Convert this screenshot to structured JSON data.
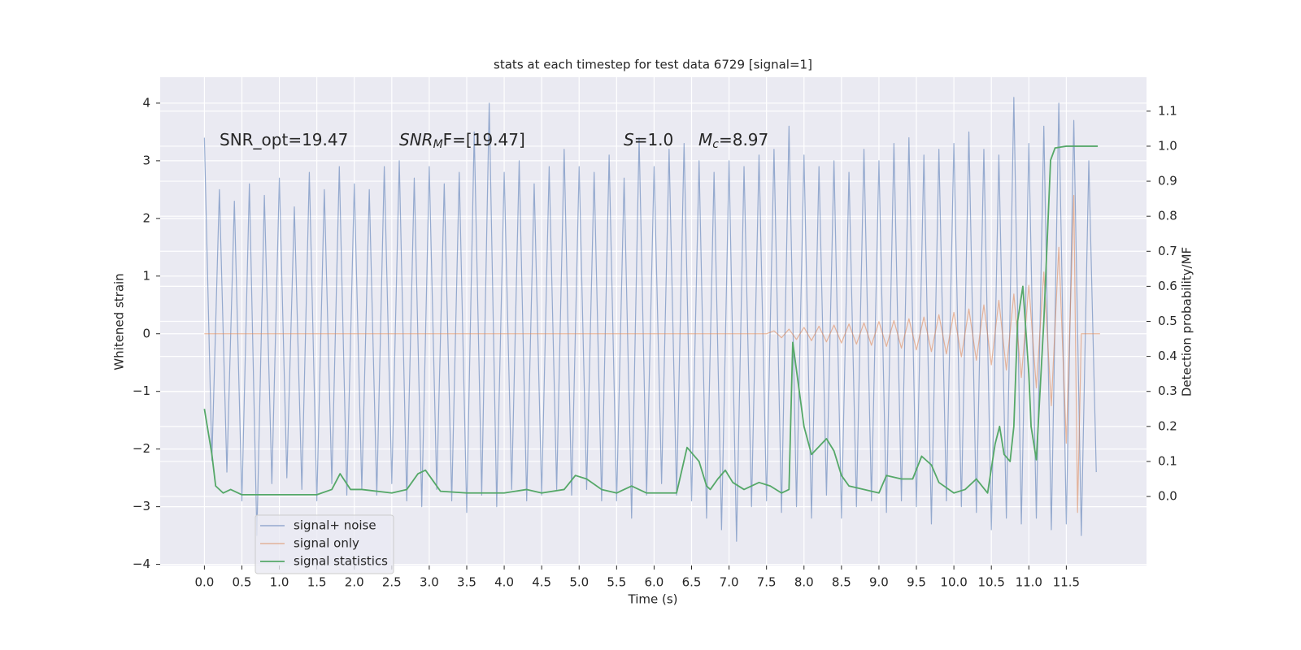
{
  "chart_data": {
    "type": "line",
    "title": "stats at each timestep for test data 6729 [signal=1]",
    "xlabel": "Time (s)",
    "ylabel": "Whitened strain",
    "y2label": "Detection probability/MF",
    "xlim": [
      -0.59,
      12.57
    ],
    "ylim": [
      -4.02,
      4.45
    ],
    "y2lim": [
      -0.197,
      1.197
    ],
    "grid": true,
    "legend": "lower left",
    "xticks": [
      {
        "value": 0,
        "label": "0.0"
      },
      {
        "value": 0.5,
        "label": "0.5"
      },
      {
        "value": 1,
        "label": "1.0"
      },
      {
        "value": 1.5,
        "label": "1.5"
      },
      {
        "value": 2,
        "label": "2.0"
      },
      {
        "value": 2.5,
        "label": "2.5"
      },
      {
        "value": 3,
        "label": "3.0"
      },
      {
        "value": 3.5,
        "label": "3.5"
      },
      {
        "value": 4,
        "label": "4.0"
      },
      {
        "value": 4.5,
        "label": "4.5"
      },
      {
        "value": 5,
        "label": "5.0"
      },
      {
        "value": 5.5,
        "label": "5.5"
      },
      {
        "value": 6,
        "label": "6.0"
      },
      {
        "value": 6.5,
        "label": "6.5"
      },
      {
        "value": 7,
        "label": "7.0"
      },
      {
        "value": 7.5,
        "label": "7.5"
      },
      {
        "value": 8,
        "label": "8.0"
      },
      {
        "value": 8.5,
        "label": "8.5"
      },
      {
        "value": 9,
        "label": "9.0"
      },
      {
        "value": 9.5,
        "label": "9.5"
      },
      {
        "value": 10,
        "label": "10.0"
      },
      {
        "value": 10.5,
        "label": "10.5"
      },
      {
        "value": 11,
        "label": "11.0"
      },
      {
        "value": 11.5,
        "label": "11.5"
      }
    ],
    "yticks": [
      {
        "value": -4,
        "label": "−4"
      },
      {
        "value": -3,
        "label": "−3"
      },
      {
        "value": -2,
        "label": "−2"
      },
      {
        "value": -1,
        "label": "−1"
      },
      0,
      1,
      2,
      3,
      4
    ],
    "y2ticks": [
      {
        "value": 0,
        "label": "0.0"
      },
      {
        "value": 0.1,
        "label": "0.1"
      },
      {
        "value": 0.2,
        "label": "0.2"
      },
      {
        "value": 0.3,
        "label": "0.3"
      },
      {
        "value": 0.4,
        "label": "0.4"
      },
      {
        "value": 0.5,
        "label": "0.5"
      },
      {
        "value": 0.6,
        "label": "0.6"
      },
      {
        "value": 0.7,
        "label": "0.7"
      },
      {
        "value": 0.8,
        "label": "0.8"
      },
      {
        "value": 0.9,
        "label": "0.9"
      },
      {
        "value": 1,
        "label": "1.0"
      },
      {
        "value": 1.1,
        "label": "1.1"
      }
    ],
    "annotations": [
      {
        "text": "SNR_opt=19.47"
      },
      {
        "text": "SNR",
        "sub": "M",
        "tail": "F=[19.47]"
      },
      {
        "text": "S",
        "tail": "=1.0"
      },
      {
        "text": "M",
        "sub": "c",
        "tail": "=8.97"
      }
    ],
    "series": [
      {
        "name": "signal+ noise",
        "color": "#4c72b0",
        "x": [
          0.0,
          0.1,
          0.2,
          0.3,
          0.4,
          0.5,
          0.6,
          0.7,
          0.8,
          0.9,
          1.0,
          1.1,
          1.2,
          1.3,
          1.4,
          1.5,
          1.6,
          1.7,
          1.8,
          1.9,
          2.0,
          2.1,
          2.2,
          2.3,
          2.4,
          2.5,
          2.6,
          2.7,
          2.8,
          2.9,
          3.0,
          3.1,
          3.2,
          3.3,
          3.4,
          3.5,
          3.6,
          3.7,
          3.8,
          3.9,
          4.0,
          4.1,
          4.2,
          4.3,
          4.4,
          4.5,
          4.6,
          4.7,
          4.8,
          4.9,
          5.0,
          5.1,
          5.2,
          5.3,
          5.4,
          5.5,
          5.6,
          5.7,
          5.8,
          5.9,
          6.0,
          6.1,
          6.2,
          6.3,
          6.4,
          6.5,
          6.6,
          6.7,
          6.8,
          6.9,
          7.0,
          7.1,
          7.2,
          7.3,
          7.4,
          7.5,
          7.6,
          7.7,
          7.8,
          7.9,
          8.0,
          8.1,
          8.2,
          8.3,
          8.4,
          8.5,
          8.6,
          8.7,
          8.8,
          8.9,
          9.0,
          9.1,
          9.2,
          9.3,
          9.4,
          9.5,
          9.6,
          9.7,
          9.8,
          9.9,
          10.0,
          10.1,
          10.2,
          10.3,
          10.4,
          10.5,
          10.6,
          10.7,
          10.8,
          10.9,
          11.0,
          11.1,
          11.2,
          11.3,
          11.4,
          11.5,
          11.6,
          11.7,
          11.8,
          11.9
        ],
        "values": [
          3.4,
          -2.2,
          2.5,
          -2.4,
          2.3,
          -2.9,
          2.6,
          -3.5,
          2.4,
          -2.6,
          2.7,
          -2.5,
          2.2,
          -2.7,
          2.8,
          -2.9,
          2.5,
          -2.6,
          2.9,
          -2.8,
          2.6,
          -2.7,
          2.5,
          -2.8,
          2.9,
          -2.6,
          3.0,
          -2.9,
          2.7,
          -3.0,
          2.9,
          -2.7,
          2.6,
          -2.9,
          2.8,
          -3.1,
          3.5,
          -2.8,
          4.0,
          -3.0,
          2.8,
          -2.7,
          3.0,
          -2.9,
          2.6,
          -2.8,
          2.9,
          -2.7,
          3.2,
          -2.8,
          2.9,
          -2.7,
          2.8,
          -2.9,
          3.1,
          -2.9,
          2.7,
          -3.2,
          3.4,
          -2.8,
          2.9,
          -2.6,
          3.2,
          -2.8,
          3.3,
          -2.9,
          3.0,
          -3.2,
          2.8,
          -3.4,
          3.0,
          -3.6,
          2.9,
          -3.0,
          3.1,
          -2.9,
          3.2,
          -3.1,
          3.6,
          -3.0,
          3.1,
          -3.2,
          2.9,
          -2.8,
          3.0,
          -3.2,
          2.8,
          -3.0,
          3.2,
          -2.9,
          3.0,
          -3.1,
          3.3,
          -2.9,
          3.4,
          -3.0,
          3.1,
          -3.3,
          3.2,
          -2.9,
          3.3,
          -3.0,
          3.5,
          -3.1,
          3.2,
          -3.4,
          3.1,
          -3.2,
          4.1,
          -3.3,
          3.3,
          -3.2,
          3.6,
          -3.4,
          4.0,
          -3.3,
          3.7,
          -3.5,
          3.0,
          -2.4
        ]
      },
      {
        "name": "signal only",
        "color": "#dd8452",
        "x": [
          0.0,
          7.5,
          7.6,
          7.7,
          7.8,
          7.9,
          8.0,
          8.1,
          8.2,
          8.3,
          8.4,
          8.5,
          8.6,
          8.7,
          8.8,
          8.9,
          9.0,
          9.1,
          9.2,
          9.3,
          9.4,
          9.5,
          9.6,
          9.7,
          9.8,
          9.9,
          10.0,
          10.1,
          10.2,
          10.3,
          10.4,
          10.5,
          10.6,
          10.7,
          10.8,
          10.9,
          11.0,
          11.1,
          11.2,
          11.3,
          11.4,
          11.5,
          11.6,
          11.65,
          11.7,
          11.95
        ],
        "values": [
          0,
          0,
          0.05,
          -0.07,
          0.08,
          -0.1,
          0.11,
          -0.12,
          0.13,
          -0.14,
          0.15,
          -0.16,
          0.17,
          -0.18,
          0.19,
          -0.2,
          0.21,
          -0.22,
          0.23,
          -0.25,
          0.26,
          -0.28,
          0.29,
          -0.31,
          0.33,
          -0.35,
          0.37,
          -0.4,
          0.43,
          -0.46,
          0.5,
          -0.54,
          0.58,
          -0.63,
          0.69,
          -0.76,
          0.84,
          -0.94,
          1.07,
          -1.25,
          1.5,
          -1.9,
          2.4,
          -3.1,
          0,
          0
        ]
      },
      {
        "name": "signal statistics",
        "color": "#55a868",
        "axis": "y2",
        "x": [
          0.0,
          0.1,
          0.15,
          0.25,
          0.35,
          0.5,
          1.0,
          1.5,
          1.7,
          1.81,
          1.95,
          2.1,
          2.5,
          2.7,
          2.85,
          2.95,
          3.05,
          3.15,
          3.5,
          4.0,
          4.3,
          4.5,
          4.8,
          4.95,
          5.1,
          5.3,
          5.5,
          5.7,
          5.9,
          6.3,
          6.44,
          6.6,
          6.7,
          6.75,
          6.85,
          6.95,
          7.05,
          7.2,
          7.4,
          7.55,
          7.7,
          7.8,
          7.85,
          8.0,
          8.1,
          8.3,
          8.4,
          8.5,
          8.6,
          9.0,
          9.1,
          9.3,
          9.45,
          9.57,
          9.7,
          9.8,
          10.0,
          10.15,
          10.3,
          10.45,
          10.55,
          10.61,
          10.67,
          10.75,
          10.8,
          10.85,
          10.92,
          11.0,
          11.03,
          11.1,
          11.2,
          11.29,
          11.35,
          11.5,
          11.92
        ],
        "values": [
          0.25,
          0.12,
          0.03,
          0.01,
          0.02,
          0.005,
          0.005,
          0.005,
          0.02,
          0.065,
          0.02,
          0.02,
          0.01,
          0.02,
          0.065,
          0.075,
          0.045,
          0.015,
          0.01,
          0.01,
          0.02,
          0.01,
          0.02,
          0.06,
          0.05,
          0.02,
          0.01,
          0.03,
          0.01,
          0.01,
          0.14,
          0.1,
          0.03,
          0.02,
          0.05,
          0.075,
          0.04,
          0.02,
          0.04,
          0.03,
          0.01,
          0.02,
          0.44,
          0.2,
          0.12,
          0.165,
          0.13,
          0.06,
          0.03,
          0.01,
          0.06,
          0.05,
          0.05,
          0.115,
          0.09,
          0.04,
          0.01,
          0.02,
          0.05,
          0.01,
          0.15,
          0.2,
          0.12,
          0.1,
          0.2,
          0.5,
          0.6,
          0.35,
          0.2,
          0.105,
          0.5,
          0.96,
          0.995,
          1.0,
          1.0
        ]
      }
    ]
  }
}
